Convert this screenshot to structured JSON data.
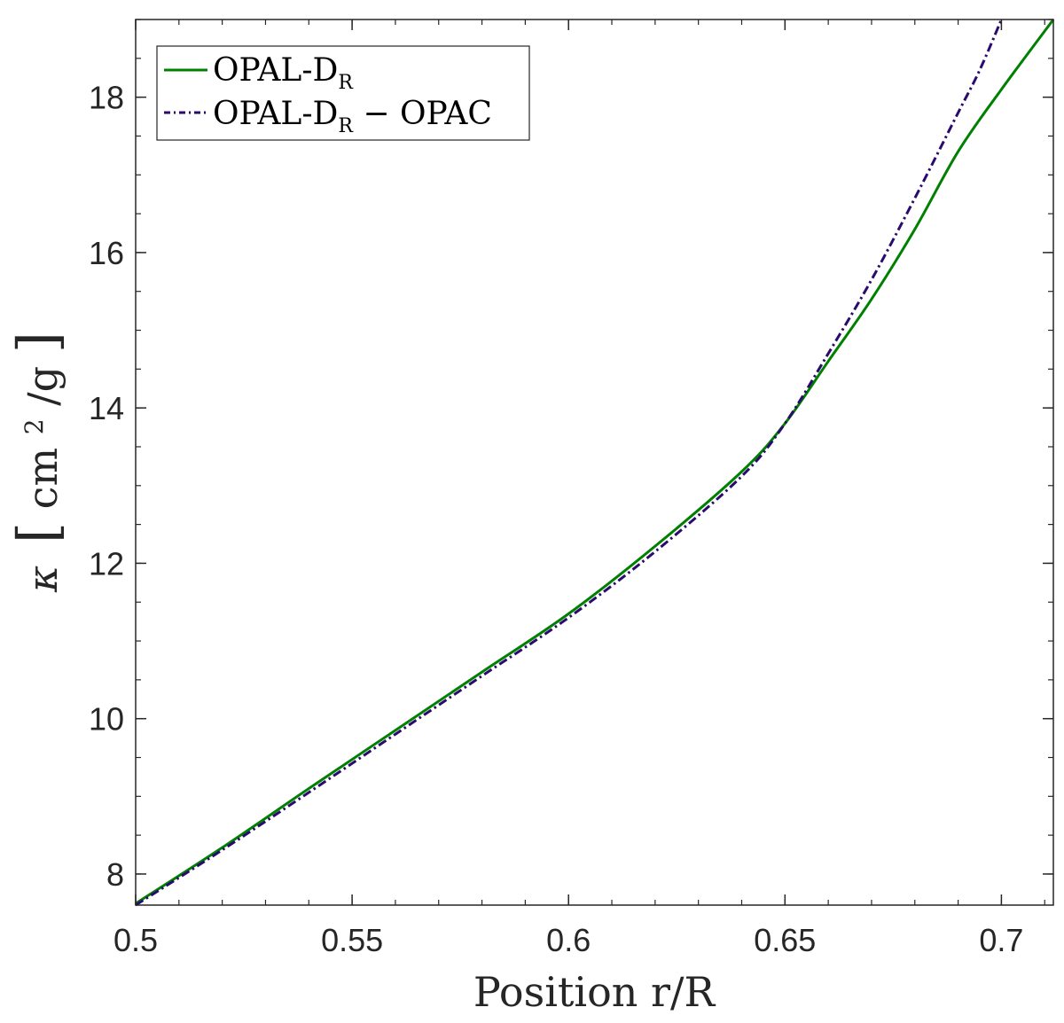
{
  "chart_data": {
    "type": "line",
    "title": "",
    "xlabel": "Position r/R",
    "ylabel_symbol": "κ",
    "ylabel_unit_base": "cm",
    "ylabel_unit_exp": "2",
    "ylabel_unit_tail": "/g",
    "xlim": [
      0.5,
      0.712
    ],
    "ylim": [
      7.6,
      19.0
    ],
    "xticks": [
      0.5,
      0.55,
      0.6,
      0.65,
      0.7
    ],
    "xtick_labels": [
      "0.5",
      "0.55",
      "0.6",
      "0.65",
      "0.7"
    ],
    "yticks": [
      8,
      10,
      12,
      14,
      16,
      18
    ],
    "ytick_labels": [
      "8",
      "10",
      "12",
      "14",
      "16",
      "18"
    ],
    "x_minor_step": 0.01,
    "y_minor_step": 0.5,
    "grid": false,
    "legend_position": "top-left",
    "series": [
      {
        "name_main": "OPAL-D",
        "name_sub": "R",
        "name_tail": "",
        "color": "#008000",
        "style": "solid",
        "x": [
          0.5,
          0.52,
          0.54,
          0.56,
          0.58,
          0.6,
          0.62,
          0.64,
          0.65,
          0.66,
          0.67,
          0.68,
          0.69,
          0.7,
          0.712
        ],
        "y": [
          7.62,
          8.34,
          9.1,
          9.85,
          10.6,
          11.35,
          12.22,
          13.18,
          13.8,
          14.6,
          15.4,
          16.3,
          17.3,
          18.1,
          19.0
        ]
      },
      {
        "name_main": "OPAL-D",
        "name_sub": "R",
        "name_tail": " − OPAC",
        "color": "#2a0a6e",
        "style": "dashdot",
        "x": [
          0.5,
          0.52,
          0.54,
          0.56,
          0.58,
          0.6,
          0.62,
          0.64,
          0.65,
          0.66,
          0.67,
          0.68,
          0.69,
          0.695,
          0.7
        ],
        "y": [
          7.6,
          8.31,
          9.05,
          9.8,
          10.55,
          11.3,
          12.15,
          13.12,
          13.8,
          14.7,
          15.65,
          16.7,
          17.8,
          18.35,
          19.0
        ]
      }
    ]
  }
}
